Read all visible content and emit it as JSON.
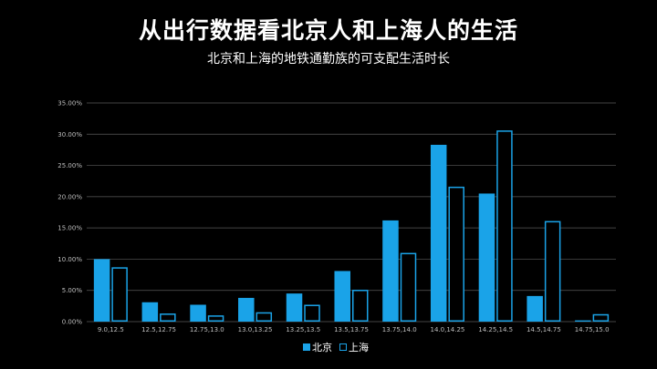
{
  "chart_data": {
    "type": "bar",
    "title": "从出行数据看北京人和上海人的生活",
    "subtitle": "北京和上海的地铁通勤族的可支配生活时长",
    "categories": [
      "9.0,12.5",
      "12.5,12.75",
      "12.75,13.0",
      "13.0,13.25",
      "13.25,13.5",
      "13.5,13.75",
      "13.75,14.0",
      "14.0,14.25",
      "14.25,14.5",
      "14.5,14.75",
      "14.75,15.0"
    ],
    "series": [
      {
        "name": "北京",
        "values": [
          10.0,
          3.1,
          2.7,
          3.8,
          4.5,
          8.1,
          16.2,
          28.3,
          20.5,
          4.1,
          0.2
        ],
        "color": "#1aa3e8",
        "style": "filled"
      },
      {
        "name": "上海",
        "values": [
          8.7,
          1.3,
          1.0,
          1.5,
          2.7,
          5.1,
          11.0,
          21.6,
          30.6,
          16.1,
          1.2
        ],
        "color": "#1aa3e8",
        "style": "outline"
      }
    ],
    "yticks": [
      "0.00%",
      "5.00%",
      "10.00%",
      "15.00%",
      "20.00%",
      "25.00%",
      "30.00%",
      "35.00%"
    ],
    "ylim": [
      0,
      35
    ],
    "grid": true,
    "legend": "bottom-center",
    "colors": {
      "background": "#000000",
      "grid": "#5a5a5a",
      "text": "#ffffff"
    }
  }
}
